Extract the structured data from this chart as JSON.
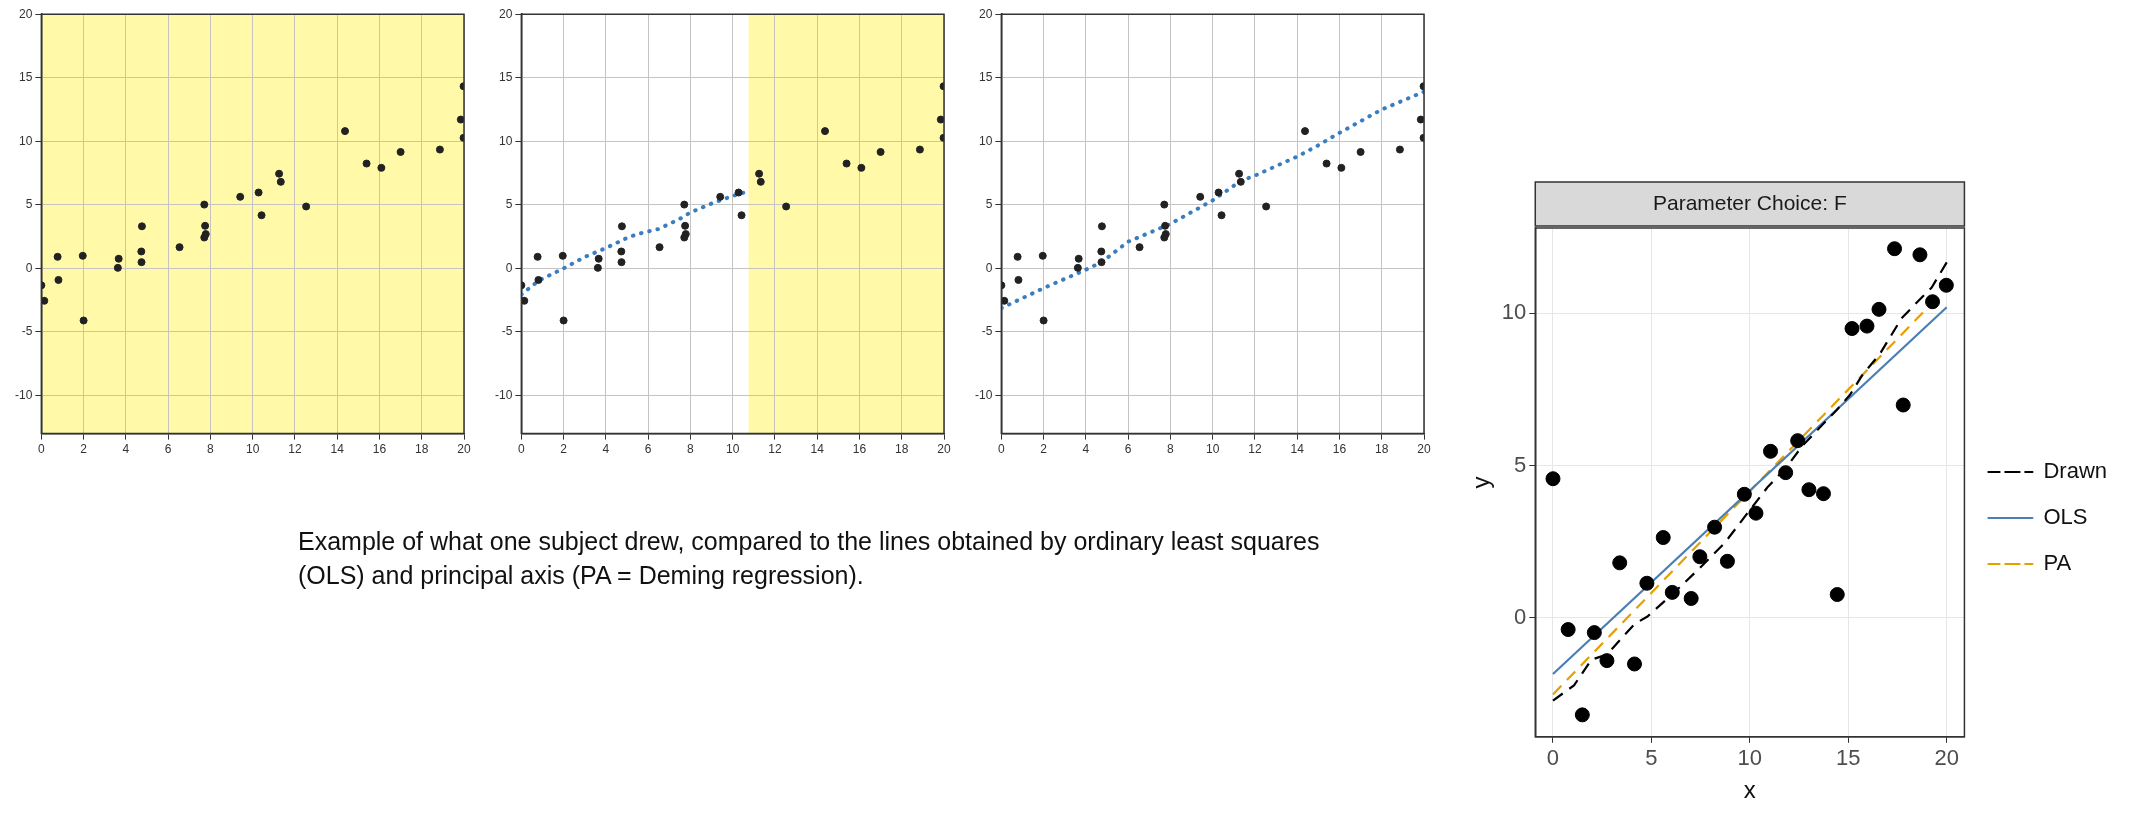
{
  "chart_data": [
    {
      "type": "scatter",
      "x": [
        0,
        0.14,
        0.77,
        0.81,
        1.96,
        2,
        3.62,
        3.66,
        4.73,
        4.74,
        4.76,
        6.54,
        7.71,
        7.75,
        7.71,
        7.78,
        9.41,
        10.28,
        10.42,
        11.25,
        11.33,
        12.53,
        14.37,
        15.39,
        16.09,
        17,
        18.86,
        19.85,
        19.98,
        19.98
      ],
      "values": [
        -1.33,
        -2.55,
        0.91,
        -0.91,
        0.99,
        -4.1,
        0.04,
        0.76,
        1.33,
        0.49,
        3.31,
        1.67,
        5.02,
        3.35,
        2.43,
        2.7,
        5.63,
        5.97,
        4.18,
        7.45,
        6.81,
        4.87,
        10.8,
        8.25,
        7.91,
        9.16,
        9.35,
        11.71,
        10.27,
        14.33
      ],
      "color": "#222222",
      "xlim": [
        0,
        20
      ],
      "ylim": [
        -13,
        20
      ],
      "xticks": [
        0,
        2,
        4,
        6,
        8,
        10,
        12,
        14,
        16,
        18,
        20
      ],
      "yticks": [
        -10,
        -5,
        0,
        5,
        10,
        15,
        20
      ],
      "grid": true,
      "marker": "circle",
      "bands": [
        {
          "axis": "x",
          "from": 0,
          "to": 20,
          "color": "#fff9a8"
        }
      ],
      "annotations": [
        "Example of what one subject drew, compared to the lines obtained by ordinary least squares (OLS) and principal axis (PA = Deming regression)."
      ]
    },
    {
      "type": "scatter",
      "series": [
        {
          "marker": "circle",
          "color": "#222222",
          "x": [
            0,
            0.14,
            0.77,
            0.81,
            1.96,
            2,
            3.62,
            3.66,
            4.73,
            4.74,
            4.76,
            6.54,
            7.71,
            7.75,
            7.71,
            7.78,
            9.41,
            10.28,
            10.42,
            11.25,
            11.33,
            12.53,
            14.37,
            15.39,
            16.09,
            17,
            18.86,
            19.85,
            19.98,
            19.98
          ],
          "values": [
            -1.33,
            -2.55,
            0.91,
            -0.91,
            0.99,
            -4.1,
            0.04,
            0.76,
            1.33,
            0.49,
            3.31,
            1.67,
            5.02,
            3.35,
            2.43,
            2.7,
            5.63,
            5.97,
            4.18,
            7.45,
            6.81,
            4.87,
            10.8,
            8.25,
            7.91,
            9.16,
            9.35,
            11.71,
            10.27,
            14.33
          ]
        },
        {
          "type": "line",
          "marker": "none",
          "color": "#3a7ebf",
          "line_style": "dotted",
          "x": [
            0,
            0.82,
            2,
            3,
            4,
            5,
            5.5,
            6.5,
            7.5,
            8,
            9,
            10,
            10.5
          ],
          "values": [
            -2.06,
            -0.96,
            0,
            0.9,
            1.6,
            2.4,
            2.7,
            3.1,
            3.9,
            4.4,
            5.1,
            5.7,
            5.95
          ]
        }
      ],
      "xlim": [
        0,
        20
      ],
      "ylim": [
        -13,
        20
      ],
      "xticks": [
        0,
        2,
        4,
        6,
        8,
        10,
        12,
        14,
        16,
        18,
        20
      ],
      "yticks": [
        -10,
        -5,
        0,
        5,
        10,
        15,
        20
      ],
      "grid": true,
      "bands": [
        {
          "axis": "x",
          "from": 10.75,
          "to": 20,
          "color": "#fff9a8"
        }
      ]
    },
    {
      "type": "scatter",
      "series": [
        {
          "marker": "circle",
          "color": "#222222",
          "x": [
            0,
            0.14,
            0.77,
            0.81,
            1.96,
            2,
            3.62,
            3.66,
            4.73,
            4.74,
            4.76,
            6.54,
            7.71,
            7.75,
            7.71,
            7.78,
            9.41,
            10.28,
            10.42,
            11.25,
            11.33,
            12.53,
            14.37,
            15.39,
            16.09,
            17,
            18.86,
            19.85,
            19.98,
            19.98
          ],
          "values": [
            -1.33,
            -2.55,
            0.91,
            -0.91,
            0.99,
            -4.1,
            0.04,
            0.76,
            1.33,
            0.49,
            3.31,
            1.67,
            5.02,
            3.35,
            2.43,
            2.7,
            5.63,
            5.97,
            4.18,
            7.45,
            6.81,
            4.87,
            10.8,
            8.25,
            7.91,
            9.16,
            9.35,
            11.71,
            10.27,
            14.33
          ]
        },
        {
          "type": "line",
          "marker": "none",
          "color": "#3a7ebf",
          "line_style": "dotted",
          "x": [
            0,
            2,
            4,
            4.75,
            6,
            8,
            10,
            11.35,
            12,
            14,
            14.96,
            16,
            18,
            20
          ],
          "values": [
            -3.13,
            -1.55,
            -0.1,
            0.5,
            2.1,
            3.5,
            5.35,
            6.9,
            7.3,
            8.8,
            9.65,
            10.66,
            12.5,
            13.9
          ]
        }
      ],
      "xlim": [
        0,
        20
      ],
      "ylim": [
        -13,
        20
      ],
      "xticks": [
        0,
        2,
        4,
        6,
        8,
        10,
        12,
        14,
        16,
        18,
        20
      ],
      "yticks": [
        -10,
        -5,
        0,
        5,
        10,
        15,
        20
      ],
      "grid": true
    },
    {
      "type": "scatter",
      "title": "Parameter Choice: F",
      "xlabel": "x",
      "ylabel": "y",
      "series": [
        {
          "marker": "circle",
          "color": "#000000",
          "x": [
            0,
            0.77,
            1.49,
            2.1,
            2.74,
            3.39,
            4.14,
            4.77,
            5.6,
            6.06,
            7.02,
            7.46,
            8.21,
            8.86,
            9.72,
            10.31,
            11.05,
            11.82,
            12.43,
            13,
            13.74,
            14.44,
            15.19,
            15.95,
            16.56,
            17.35,
            17.79,
            18.64,
            19.28,
            19.98
          ],
          "values": [
            4.57,
            -0.38,
            -3.18,
            -0.48,
            -1.4,
            1.81,
            -1.51,
            1.14,
            2.64,
            0.84,
            0.64,
            2.01,
            2.98,
            1.86,
            4.06,
            3.44,
            5.47,
            4.77,
            5.82,
            4.21,
            4.08,
            0.77,
            9.5,
            9.58,
            10.13,
            12.12,
            6.99,
            11.92,
            10.38,
            10.92
          ]
        },
        {
          "type": "line",
          "marker": "none",
          "name": "Drawn",
          "color": "#000000",
          "line_style": "dashed",
          "x": [
            0,
            1.07,
            1.95,
            2.74,
            4.14,
            4.8,
            6.1,
            7.46,
            8.73,
            9.82,
            10.92,
            11.8,
            12.67,
            13.54,
            14.4,
            15.08,
            15.73,
            16.6,
            17.7,
            18.58,
            19.23,
            20
          ],
          "values": [
            -2.71,
            -2.21,
            -1.37,
            -1.2,
            -0.2,
            0.05,
            0.8,
            1.64,
            2.47,
            3.39,
            4.31,
            4.9,
            5.65,
            6.24,
            6.82,
            7.32,
            7.99,
            8.66,
            9.83,
            10.42,
            10.84,
            11.67
          ]
        },
        {
          "type": "line",
          "marker": "none",
          "name": "OLS",
          "color": "#4a7fb5",
          "line_style": "solid",
          "x": [
            0,
            20
          ],
          "values": [
            -1.84,
            10.2
          ]
        },
        {
          "type": "line",
          "marker": "none",
          "name": "PA",
          "color": "#e69f00",
          "line_style": "dashed",
          "x": [
            0,
            19.5
          ],
          "values": [
            -2.51,
            10.5
          ]
        }
      ],
      "xlim": [
        -0.9,
        20.9
      ],
      "ylim": [
        -3.9,
        12.8
      ],
      "xticks": [
        0,
        5,
        10,
        15,
        20
      ],
      "yticks": [
        0,
        5,
        10
      ],
      "grid": true,
      "legend": "right"
    }
  ]
}
